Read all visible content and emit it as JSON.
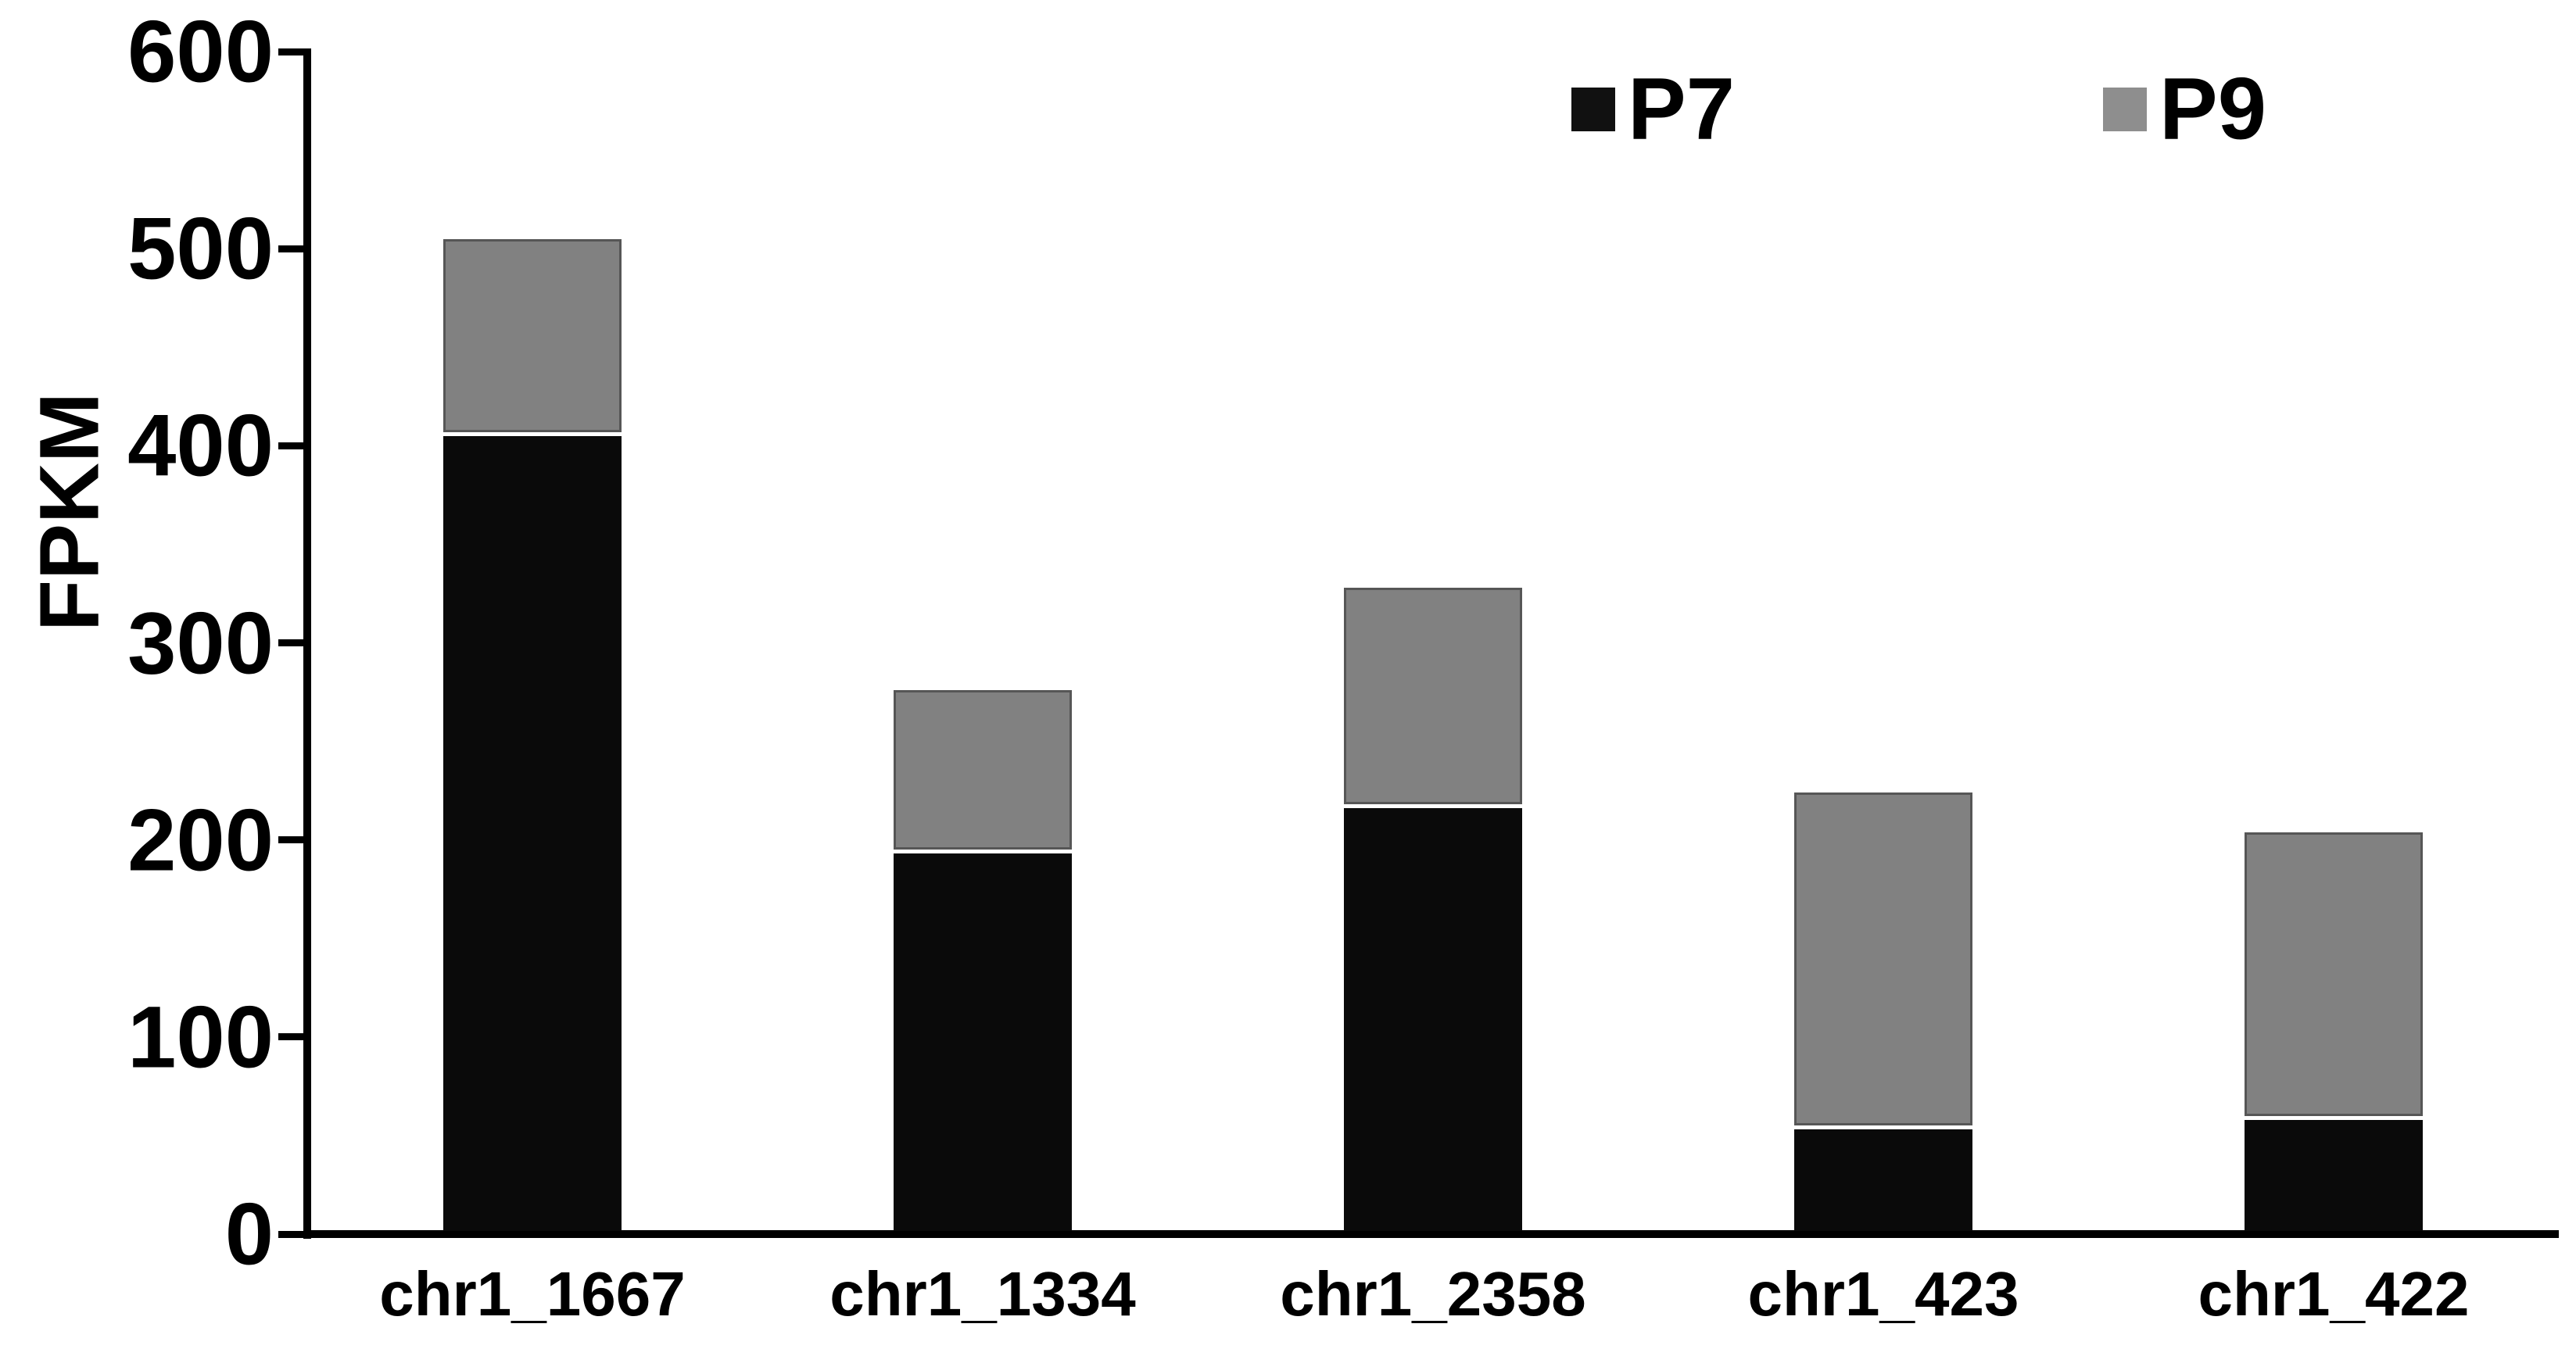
{
  "figure": {
    "background": "#ffffff",
    "axis_color": "#000000",
    "text_color": "#000000"
  },
  "chart_data": {
    "type": "bar",
    "stacked": true,
    "title": "",
    "xlabel": "",
    "ylabel": "FPKM",
    "categories": [
      "chr1_1667",
      "chr1_1334",
      "chr1_2358",
      "chr1_423",
      "chr1_422"
    ],
    "series": [
      {
        "name": "P7",
        "color": "#0a0a0a",
        "border_color": "#0a0a0a",
        "values": [
          405,
          193,
          216,
          53,
          58
        ]
      },
      {
        "name": "P9",
        "color": "#818181",
        "border_color": "#565656",
        "values": [
          100,
          83,
          112,
          171,
          146
        ]
      }
    ],
    "stack_totals": [
      505,
      276,
      328,
      224,
      204
    ],
    "ylim": [
      0,
      600
    ],
    "yticks": [
      0,
      100,
      200,
      300,
      400,
      500,
      600
    ],
    "ytick_labels": [
      "0",
      "100",
      "200",
      "300",
      "400",
      "500",
      "600"
    ],
    "grid": false,
    "legend_position": "top-right",
    "legend": [
      {
        "label": "P7",
        "swatch_color": "#111111"
      },
      {
        "label": "P9",
        "swatch_color": "#8e8e8e"
      }
    ]
  }
}
